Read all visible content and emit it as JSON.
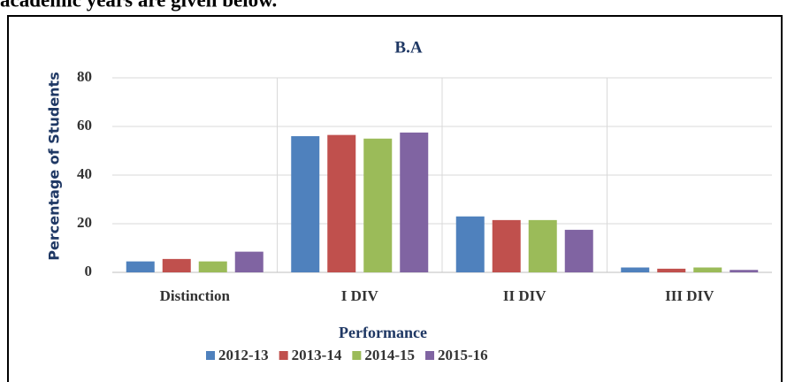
{
  "header_text": "academic years are given below.",
  "chart_data": {
    "type": "bar",
    "title": "B.A",
    "x_label": "Performance",
    "y_label": "Percentage of Students",
    "categories": [
      "Distinction",
      "I DIV",
      "II DIV",
      "III DIV"
    ],
    "series": [
      {
        "name": "2012-13",
        "color": "#4f81bd",
        "values": [
          4.5,
          56,
          23,
          2
        ]
      },
      {
        "name": "2013-14",
        "color": "#c0504d",
        "values": [
          5.5,
          56.5,
          21.5,
          1.5
        ]
      },
      {
        "name": "2014-15",
        "color": "#9bbb59",
        "values": [
          4.5,
          55,
          21.5,
          2
        ]
      },
      {
        "name": "2015-16",
        "color": "#8064a2",
        "values": [
          8.5,
          57.5,
          17.5,
          1
        ]
      }
    ],
    "ylim": [
      0,
      80
    ],
    "yticks": [
      0,
      20,
      40,
      60,
      80
    ],
    "grid": true,
    "legend": "bottom"
  }
}
